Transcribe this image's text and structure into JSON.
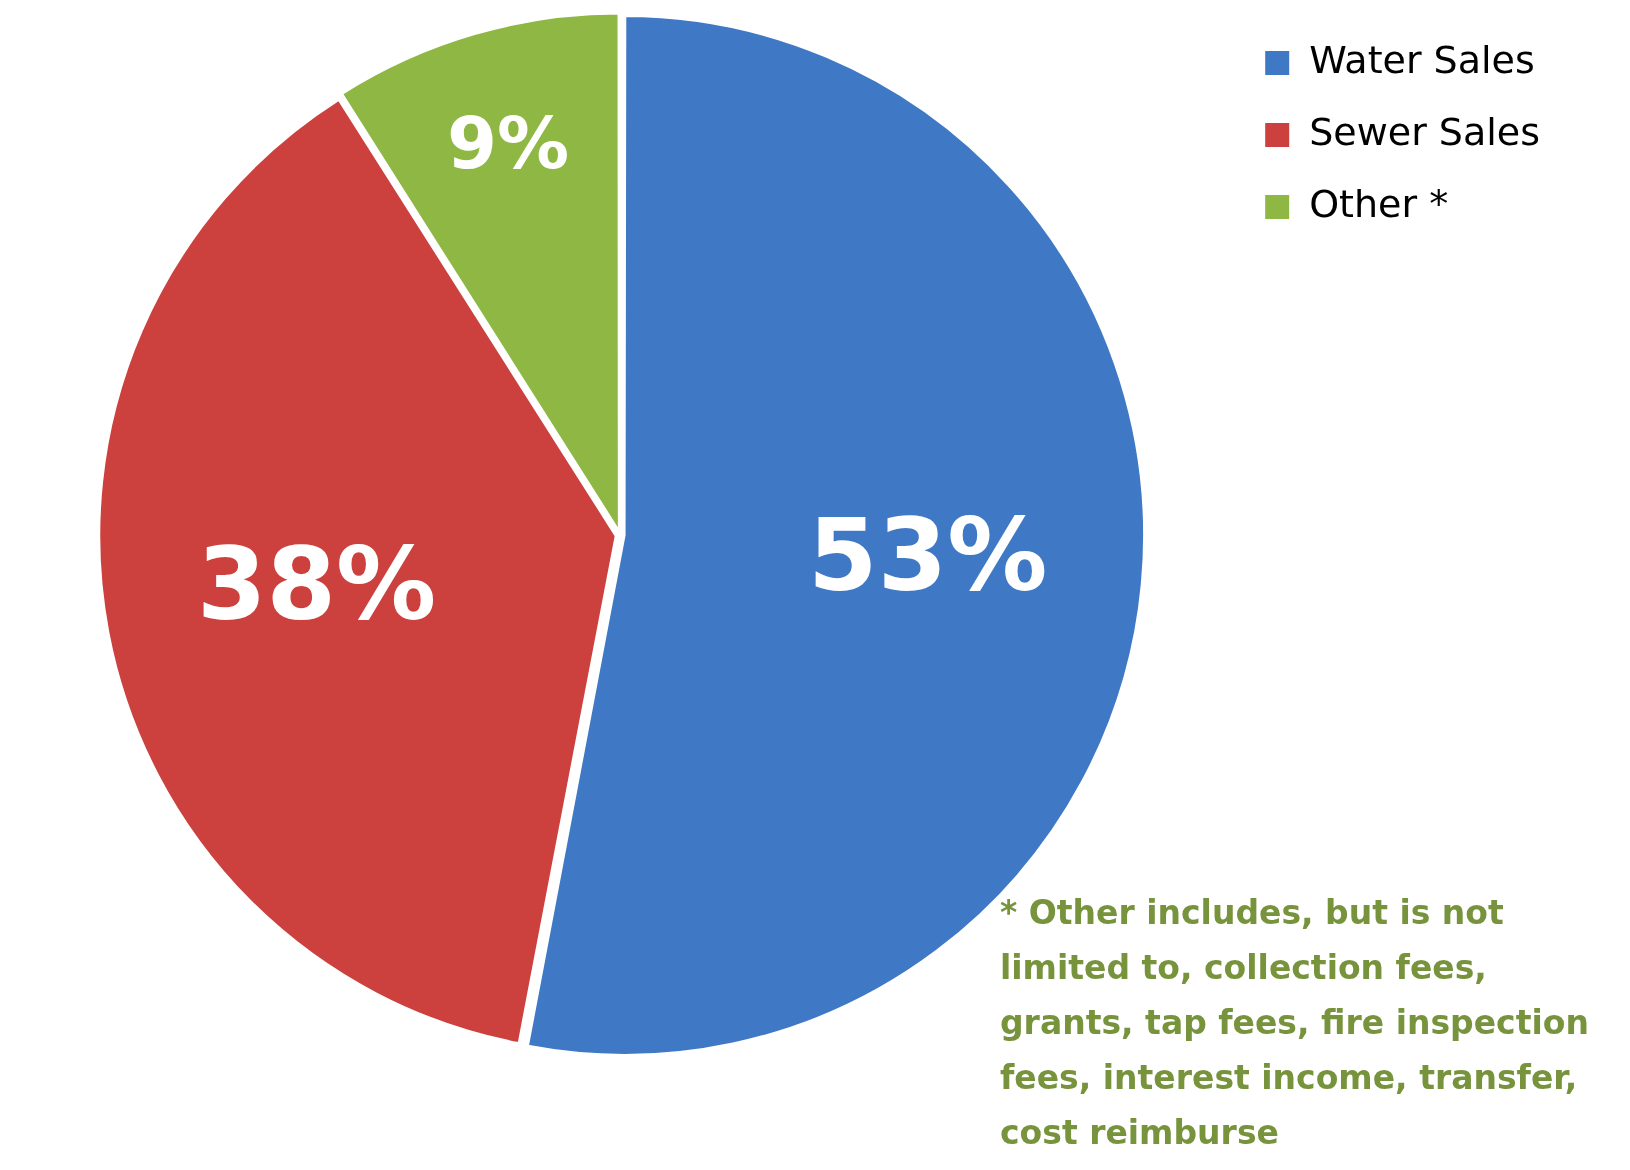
{
  "chart_data": {
    "type": "pie",
    "categories": [
      "Water Sales",
      "Sewer Sales",
      "Other *"
    ],
    "values": [
      53,
      38,
      9
    ],
    "colors": [
      "#3f78c4",
      "#cc403d",
      "#8fb744"
    ],
    "value_labels": [
      "53%",
      "38%",
      "9%"
    ],
    "legend": "top right",
    "annotations": [
      "* Other includes, but is not limited to, collection fees, grants, tap fees, fire inspection fees, interest income, transfer, cost reimburse"
    ]
  }
}
